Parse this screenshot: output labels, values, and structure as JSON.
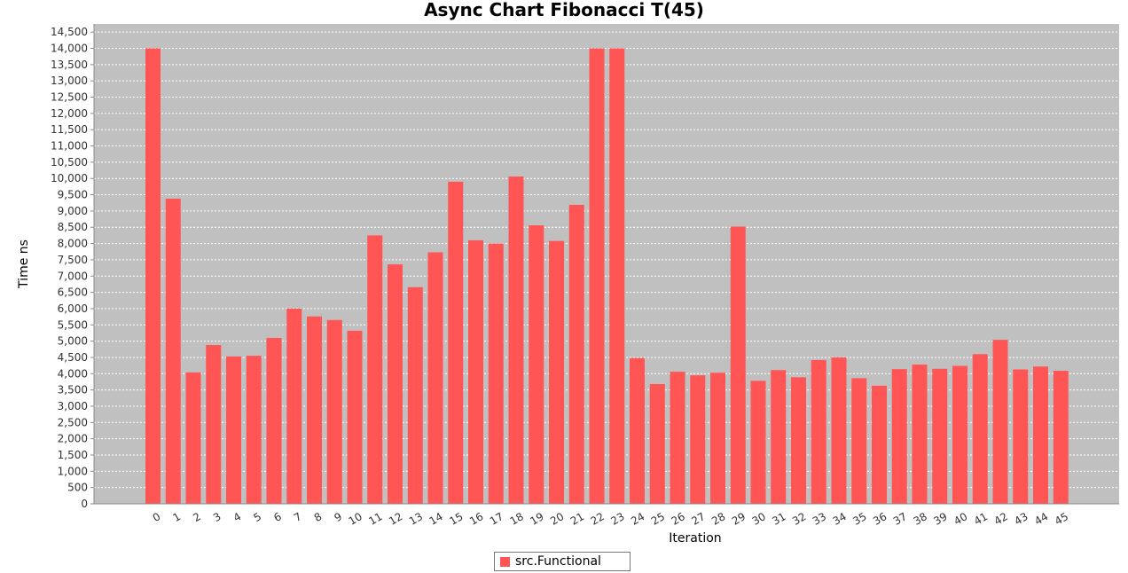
{
  "chart_data": {
    "type": "bar",
    "title": "Async Chart Fibonacci T(45)",
    "xlabel": "Iteration",
    "ylabel": "Time ns",
    "ylim": [
      0,
      14750
    ],
    "ytick_step": 500,
    "grid": true,
    "legend_position": "bottom",
    "colors": {
      "bar": "#ff5555",
      "plot_background": "#c0c0c0",
      "grid": "#ffffff"
    },
    "categories": [
      "0",
      "1",
      "2",
      "3",
      "4",
      "5",
      "6",
      "7",
      "8",
      "9",
      "10",
      "11",
      "12",
      "13",
      "14",
      "15",
      "16",
      "17",
      "18",
      "19",
      "20",
      "21",
      "22",
      "23",
      "24",
      "25",
      "26",
      "27",
      "28",
      "29",
      "30",
      "31",
      "32",
      "33",
      "34",
      "35",
      "36",
      "37",
      "38",
      "39",
      "40",
      "41",
      "42",
      "43",
      "44",
      "45"
    ],
    "series": [
      {
        "name": "src.Functional",
        "values": [
          14000,
          9380,
          4040,
          4880,
          4530,
          4550,
          5100,
          6000,
          5760,
          5650,
          5320,
          8250,
          7360,
          6660,
          7730,
          9900,
          8100,
          8000,
          10060,
          8560,
          8080,
          9190,
          14000,
          14000,
          4480,
          3680,
          4060,
          3950,
          4030,
          8520,
          3780,
          4110,
          3890,
          4420,
          4500,
          3860,
          3630,
          4140,
          4280,
          4150,
          4240,
          4600,
          5040,
          4130,
          4220,
          4090
        ]
      }
    ]
  }
}
